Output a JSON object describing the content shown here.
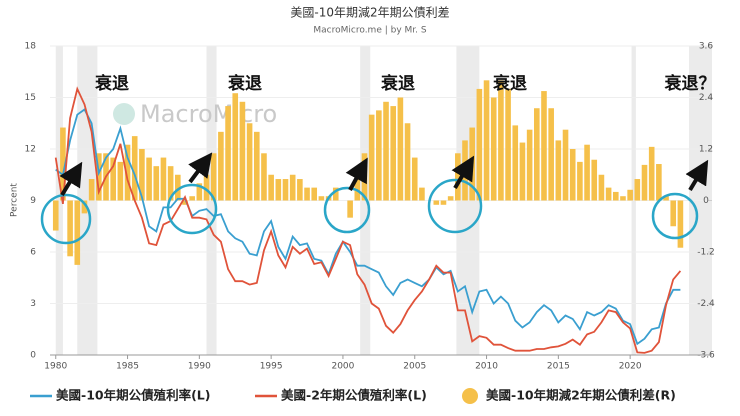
{
  "chart_data": {
    "type": "combo",
    "title": "美國-10年期減2年期公債利差",
    "subtitle": "MacroMicro.me | by Mr. S",
    "y_label": "Percent",
    "watermark": "MacroMicro",
    "annotations": [
      "衰退",
      "衰退",
      "衰退",
      "衰退",
      "衰退？"
    ],
    "xlim": [
      1979.6,
      2025.7
    ],
    "xticks": [
      1980,
      1985,
      1990,
      1995,
      2000,
      2005,
      2010,
      2015,
      2020
    ],
    "ylim": [
      0,
      18
    ],
    "yticks": [
      0,
      3,
      6,
      9,
      12,
      15,
      18
    ],
    "y2lim": [
      -3.6,
      3.6
    ],
    "y2ticks": [
      -3.6,
      -2.4,
      -1.2,
      0,
      1.2,
      2.4,
      3.6
    ],
    "recessions": [
      [
        1980.0,
        1980.5
      ],
      [
        1981.5,
        1982.9
      ],
      [
        1990.5,
        1991.2
      ],
      [
        2001.2,
        2001.9
      ],
      [
        2007.9,
        2009.5
      ],
      [
        2020.1,
        2020.4
      ],
      [
        2024.1,
        2025.7
      ]
    ],
    "x": [
      1980.0,
      1980.5,
      1981.0,
      1981.5,
      1982.0,
      1982.5,
      1983.0,
      1983.5,
      1984.0,
      1984.5,
      1985.0,
      1985.5,
      1986.0,
      1986.5,
      1987.0,
      1987.5,
      1988.0,
      1988.5,
      1989.0,
      1989.5,
      1990.0,
      1990.5,
      1991.0,
      1991.5,
      1992.0,
      1992.5,
      1993.0,
      1993.5,
      1994.0,
      1994.5,
      1995.0,
      1995.5,
      1996.0,
      1996.5,
      1997.0,
      1997.5,
      1998.0,
      1998.5,
      1999.0,
      1999.5,
      2000.0,
      2000.5,
      2001.0,
      2001.5,
      2002.0,
      2002.5,
      2003.0,
      2003.5,
      2004.0,
      2004.5,
      2005.0,
      2005.5,
      2006.0,
      2006.5,
      2007.0,
      2007.5,
      2008.0,
      2008.5,
      2009.0,
      2009.5,
      2010.0,
      2010.5,
      2011.0,
      2011.5,
      2012.0,
      2012.5,
      2013.0,
      2013.5,
      2014.0,
      2014.5,
      2015.0,
      2015.5,
      2016.0,
      2016.5,
      2017.0,
      2017.5,
      2018.0,
      2018.5,
      2019.0,
      2019.5,
      2020.0,
      2020.5,
      2021.0,
      2021.5,
      2022.0,
      2022.5,
      2023.0,
      2023.5
    ],
    "series": [
      {
        "name": "美國-10年期公債殖利率(L)",
        "color": "#3a9fd0",
        "axis": "y",
        "values": [
          10.8,
          10.5,
          12.5,
          14,
          14.3,
          13.5,
          10.6,
          11.5,
          12,
          13.2,
          11.5,
          10.5,
          9.2,
          7.5,
          7.2,
          8.6,
          8.6,
          9.1,
          9.1,
          8.1,
          8.4,
          8.5,
          8.1,
          8.2,
          7.2,
          6.8,
          6.6,
          5.9,
          5.8,
          7.2,
          7.8,
          6.3,
          5.6,
          6.9,
          6.4,
          6.5,
          5.6,
          5.5,
          4.7,
          5.9,
          6.6,
          6.0,
          5.2,
          5.2,
          5.0,
          4.8,
          4.0,
          3.5,
          4.2,
          4.4,
          4.2,
          4.0,
          4.4,
          5.1,
          4.7,
          4.9,
          3.7,
          4.0,
          2.5,
          3.7,
          3.8,
          3.0,
          3.4,
          3.0,
          2.0,
          1.6,
          1.9,
          2.5,
          2.9,
          2.6,
          1.9,
          2.3,
          2.1,
          1.5,
          2.5,
          2.3,
          2.5,
          2.9,
          2.7,
          2.0,
          1.8,
          0.65,
          0.95,
          1.5,
          1.6,
          3.0,
          3.8,
          3.8
        ]
      },
      {
        "name": "美國-2年期公債殖利率(L)",
        "color": "#e0533a",
        "axis": "y",
        "values": [
          11.5,
          8.8,
          13.8,
          15.5,
          14.6,
          13,
          9.5,
          10.4,
          11,
          12.3,
          10.2,
          9,
          8,
          6.5,
          6.4,
          7.6,
          7.8,
          8.5,
          9.2,
          8.0,
          8.0,
          7.9,
          7.0,
          6.6,
          5,
          4.3,
          4.3,
          4.1,
          4.2,
          6.1,
          7.2,
          5.8,
          5.1,
          6.3,
          5.9,
          6.2,
          5.3,
          5.4,
          4.6,
          5.6,
          6.6,
          6.4,
          4.7,
          4.1,
          3.0,
          2.7,
          1.7,
          1.3,
          1.8,
          2.6,
          3.2,
          3.7,
          4.4,
          5.2,
          4.8,
          4.8,
          2.6,
          2.6,
          0.8,
          1.1,
          1.0,
          0.6,
          0.6,
          0.4,
          0.25,
          0.25,
          0.25,
          0.35,
          0.35,
          0.45,
          0.5,
          0.65,
          0.9,
          0.6,
          1.2,
          1.35,
          1.9,
          2.6,
          2.5,
          1.9,
          1.55,
          0.15,
          0.12,
          0.25,
          0.75,
          2.9,
          4.4,
          4.9
        ]
      },
      {
        "name": "美國-10年期減2年期公債利差(R)",
        "color": "#f5c04a",
        "axis": "y2",
        "values": [
          -0.7,
          1.7,
          -1.3,
          -1.5,
          -0.3,
          0.5,
          1.1,
          1.1,
          1,
          0.9,
          1.3,
          1.5,
          1.2,
          1.0,
          0.8,
          1.0,
          0.8,
          0.6,
          -0.1,
          0.1,
          0.4,
          0.6,
          1.1,
          1.6,
          2.2,
          2.5,
          2.3,
          1.8,
          1.6,
          1.1,
          0.6,
          0.5,
          0.5,
          0.6,
          0.5,
          0.3,
          0.3,
          0.1,
          0.1,
          0.3,
          0,
          -0.4,
          0.5,
          1.1,
          2.0,
          2.1,
          2.3,
          2.2,
          2.4,
          1.8,
          1.0,
          0.3,
          0,
          -0.1,
          -0.1,
          0.1,
          1.1,
          1.4,
          1.7,
          2.6,
          2.8,
          2.4,
          2.8,
          2.6,
          1.75,
          1.35,
          1.65,
          2.15,
          2.55,
          2.15,
          1.4,
          1.65,
          1.2,
          0.9,
          1.3,
          0.95,
          0.6,
          0.3,
          0.2,
          0.1,
          0.25,
          0.5,
          0.83,
          1.25,
          0.85,
          0.1,
          -0.6,
          -1.1
        ]
      }
    ]
  }
}
